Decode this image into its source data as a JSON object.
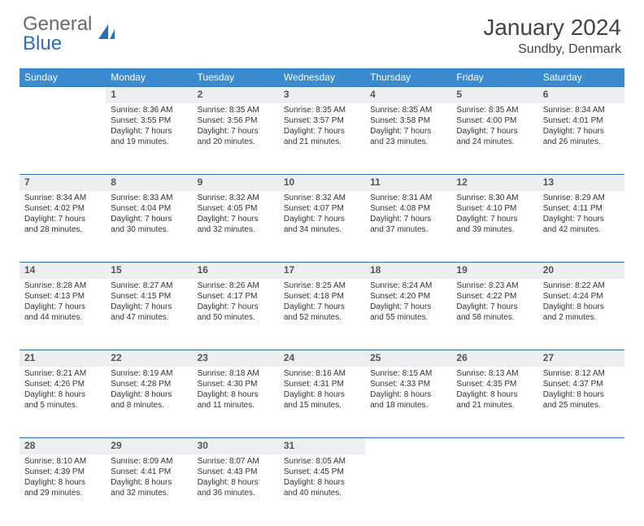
{
  "logo": {
    "text1": "General",
    "text2": "Blue"
  },
  "title": "January 2024",
  "location": "Sundby, Denmark",
  "colors": {
    "header_bg": "#3a8bd0",
    "header_text": "#ffffff",
    "daynum_bg": "#eceeef",
    "row_border": "#2f6fb3",
    "logo_gray": "#6a6a6a",
    "logo_blue": "#2f6fb3"
  },
  "day_headers": [
    "Sunday",
    "Monday",
    "Tuesday",
    "Wednesday",
    "Thursday",
    "Friday",
    "Saturday"
  ],
  "weeks": [
    {
      "nums": [
        "",
        "1",
        "2",
        "3",
        "4",
        "5",
        "6"
      ],
      "cells": [
        "",
        "Sunrise: 8:36 AM\nSunset: 3:55 PM\nDaylight: 7 hours and 19 minutes.",
        "Sunrise: 8:35 AM\nSunset: 3:56 PM\nDaylight: 7 hours and 20 minutes.",
        "Sunrise: 8:35 AM\nSunset: 3:57 PM\nDaylight: 7 hours and 21 minutes.",
        "Sunrise: 8:35 AM\nSunset: 3:58 PM\nDaylight: 7 hours and 23 minutes.",
        "Sunrise: 8:35 AM\nSunset: 4:00 PM\nDaylight: 7 hours and 24 minutes.",
        "Sunrise: 8:34 AM\nSunset: 4:01 PM\nDaylight: 7 hours and 26 minutes."
      ]
    },
    {
      "nums": [
        "7",
        "8",
        "9",
        "10",
        "11",
        "12",
        "13"
      ],
      "cells": [
        "Sunrise: 8:34 AM\nSunset: 4:02 PM\nDaylight: 7 hours and 28 minutes.",
        "Sunrise: 8:33 AM\nSunset: 4:04 PM\nDaylight: 7 hours and 30 minutes.",
        "Sunrise: 8:32 AM\nSunset: 4:05 PM\nDaylight: 7 hours and 32 minutes.",
        "Sunrise: 8:32 AM\nSunset: 4:07 PM\nDaylight: 7 hours and 34 minutes.",
        "Sunrise: 8:31 AM\nSunset: 4:08 PM\nDaylight: 7 hours and 37 minutes.",
        "Sunrise: 8:30 AM\nSunset: 4:10 PM\nDaylight: 7 hours and 39 minutes.",
        "Sunrise: 8:29 AM\nSunset: 4:11 PM\nDaylight: 7 hours and 42 minutes."
      ]
    },
    {
      "nums": [
        "14",
        "15",
        "16",
        "17",
        "18",
        "19",
        "20"
      ],
      "cells": [
        "Sunrise: 8:28 AM\nSunset: 4:13 PM\nDaylight: 7 hours and 44 minutes.",
        "Sunrise: 8:27 AM\nSunset: 4:15 PM\nDaylight: 7 hours and 47 minutes.",
        "Sunrise: 8:26 AM\nSunset: 4:17 PM\nDaylight: 7 hours and 50 minutes.",
        "Sunrise: 8:25 AM\nSunset: 4:18 PM\nDaylight: 7 hours and 52 minutes.",
        "Sunrise: 8:24 AM\nSunset: 4:20 PM\nDaylight: 7 hours and 55 minutes.",
        "Sunrise: 8:23 AM\nSunset: 4:22 PM\nDaylight: 7 hours and 58 minutes.",
        "Sunrise: 8:22 AM\nSunset: 4:24 PM\nDaylight: 8 hours and 2 minutes."
      ]
    },
    {
      "nums": [
        "21",
        "22",
        "23",
        "24",
        "25",
        "26",
        "27"
      ],
      "cells": [
        "Sunrise: 8:21 AM\nSunset: 4:26 PM\nDaylight: 8 hours and 5 minutes.",
        "Sunrise: 8:19 AM\nSunset: 4:28 PM\nDaylight: 8 hours and 8 minutes.",
        "Sunrise: 8:18 AM\nSunset: 4:30 PM\nDaylight: 8 hours and 11 minutes.",
        "Sunrise: 8:16 AM\nSunset: 4:31 PM\nDaylight: 8 hours and 15 minutes.",
        "Sunrise: 8:15 AM\nSunset: 4:33 PM\nDaylight: 8 hours and 18 minutes.",
        "Sunrise: 8:13 AM\nSunset: 4:35 PM\nDaylight: 8 hours and 21 minutes.",
        "Sunrise: 8:12 AM\nSunset: 4:37 PM\nDaylight: 8 hours and 25 minutes."
      ]
    },
    {
      "nums": [
        "28",
        "29",
        "30",
        "31",
        "",
        "",
        ""
      ],
      "cells": [
        "Sunrise: 8:10 AM\nSunset: 4:39 PM\nDaylight: 8 hours and 29 minutes.",
        "Sunrise: 8:09 AM\nSunset: 4:41 PM\nDaylight: 8 hours and 32 minutes.",
        "Sunrise: 8:07 AM\nSunset: 4:43 PM\nDaylight: 8 hours and 36 minutes.",
        "Sunrise: 8:05 AM\nSunset: 4:45 PM\nDaylight: 8 hours and 40 minutes.",
        "",
        "",
        ""
      ]
    }
  ]
}
